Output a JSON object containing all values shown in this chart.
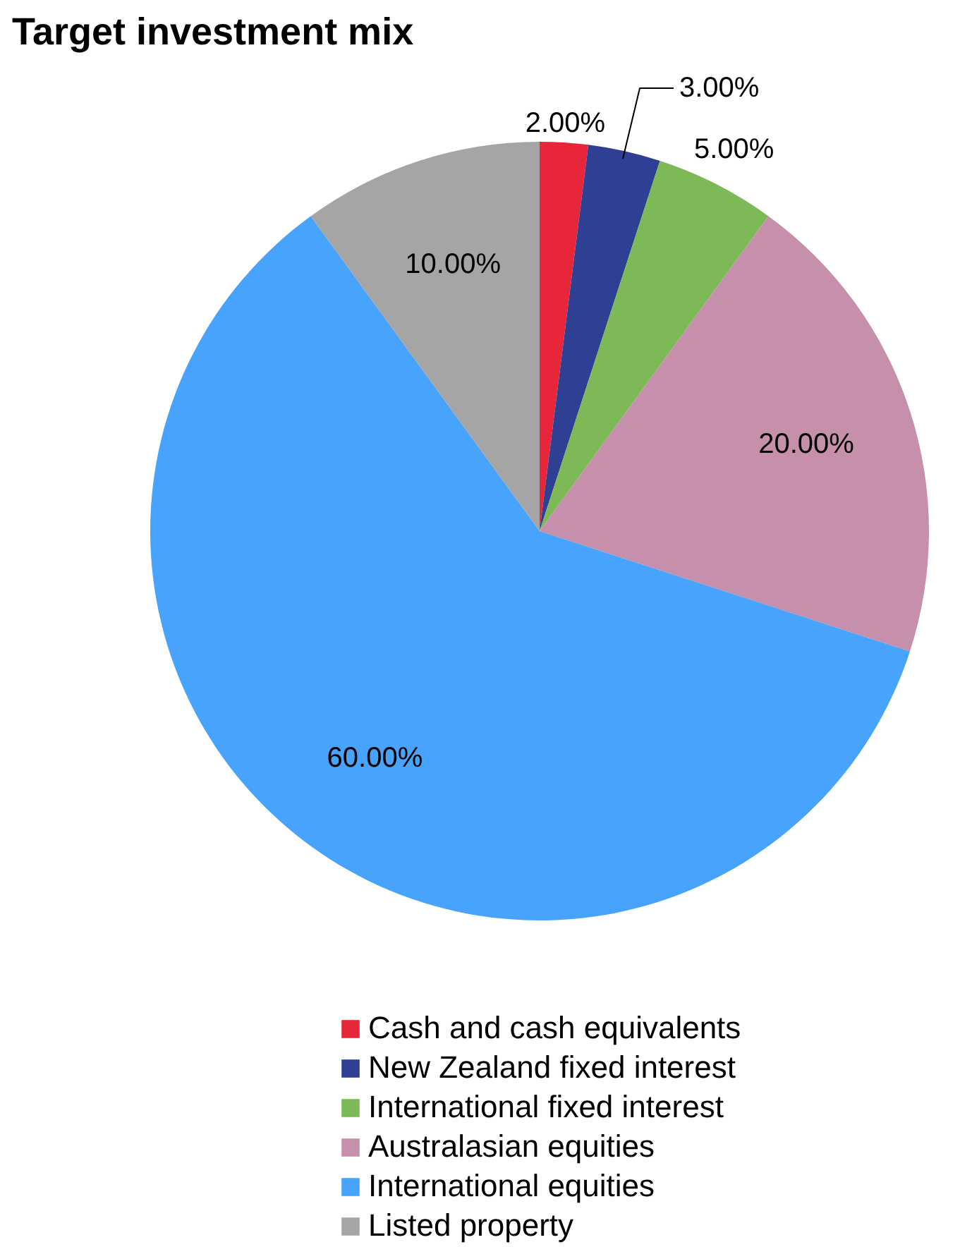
{
  "chart_data": {
    "type": "pie",
    "title": "Target investment mix",
    "categories": [
      "Cash and cash equivalents",
      "New Zealand fixed interest",
      "International fixed interest",
      "Australasian equities",
      "International equities",
      "Listed property"
    ],
    "values": [
      2,
      3,
      5,
      20,
      60,
      10
    ],
    "value_labels": [
      "2.00%",
      "3.00%",
      "5.00%",
      "20.00%",
      "60.00%",
      "10.00%"
    ],
    "colors": [
      "#e8263a",
      "#2e3f94",
      "#7dba57",
      "#c68fac",
      "#48a3fc",
      "#a5a5a5"
    ],
    "legend": "bottom"
  }
}
